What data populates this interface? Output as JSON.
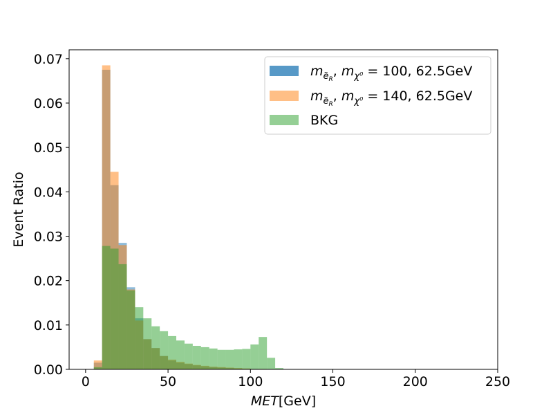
{
  "chart_data": {
    "type": "bar",
    "subtype": "histogram-overlay",
    "xlabel": "MET[GeV]",
    "ylabel": "Event Ratio",
    "xlim": [
      -10,
      250
    ],
    "ylim": [
      0,
      0.072
    ],
    "xticks": [
      0,
      50,
      100,
      150,
      200,
      250
    ],
    "yticks": [
      0.0,
      0.01,
      0.02,
      0.03,
      0.04,
      0.05,
      0.06,
      0.07
    ],
    "ytick_labels": [
      "0.00",
      "0.01",
      "0.02",
      "0.03",
      "0.04",
      "0.05",
      "0.06",
      "0.07"
    ],
    "bin_width": 5,
    "bin_edges_start": 5,
    "legend_position": "upper-right",
    "grid": false,
    "series": [
      {
        "name": "m_{e_R}, m_{χ⁰} = 100, 62.5GeV",
        "legend_label": {
          "m1": "m",
          "sub1": "ẽ",
          "subsub1": "R",
          "sep": ", ",
          "m2": "m",
          "sub2": "χ⁰",
          "value": " = 100, 62.5GeV"
        },
        "color": "#1f77b4",
        "values": [
          0.0015,
          0.0675,
          0.0415,
          0.0285,
          0.0185,
          0.0115,
          0.0068,
          0.0048,
          0.003,
          0.002,
          0.0015,
          0.0012,
          0.0009,
          0.0007,
          0.0005,
          0.0004,
          0.0003,
          0.0002,
          0.0001,
          0.0001,
          5e-05,
          5e-05
        ]
      },
      {
        "name": "m_{e_R}, m_{χ⁰} = 140, 62.5GeV",
        "legend_label": {
          "m1": "m",
          "sub1": "ẽ",
          "subsub1": "R",
          "sep": ", ",
          "m2": "m",
          "sub2": "χ⁰",
          "value": " = 140, 62.5GeV"
        },
        "color": "#ff7f0e",
        "values": [
          0.002,
          0.0685,
          0.0445,
          0.028,
          0.018,
          0.011,
          0.0068,
          0.0048,
          0.003,
          0.0022,
          0.0017,
          0.0013,
          0.001,
          0.0008,
          0.0006,
          0.0005,
          0.0004,
          0.0003,
          0.0002,
          0.0001,
          0.0001,
          5e-05
        ]
      },
      {
        "name": "BKG",
        "legend_label": {
          "value": "BKG"
        },
        "color": "#2ca02c",
        "values": [
          0.0005,
          0.0278,
          0.0272,
          0.0237,
          0.0178,
          0.014,
          0.0115,
          0.0097,
          0.0086,
          0.0075,
          0.0065,
          0.0058,
          0.0053,
          0.005,
          0.0047,
          0.0044,
          0.0044,
          0.0045,
          0.0046,
          0.0056,
          0.0073,
          0.0026,
          0.0003
        ]
      }
    ]
  }
}
